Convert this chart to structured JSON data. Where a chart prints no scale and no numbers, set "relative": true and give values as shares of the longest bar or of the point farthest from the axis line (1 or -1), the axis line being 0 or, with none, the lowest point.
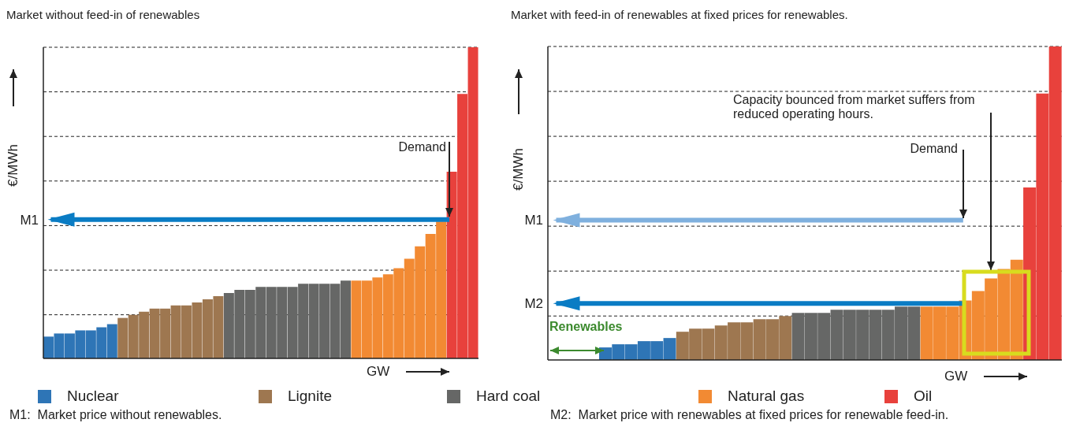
{
  "chart_data": [
    {
      "type": "bar",
      "title": "Market without feed-in of renewables",
      "xlabel": "GW",
      "ylabel": "€/MWh",
      "relative": true,
      "stacked": true,
      "grid": "y",
      "legend": "bottom",
      "categories": [
        null,
        null,
        null,
        null,
        null,
        null,
        null,
        null,
        null,
        null,
        null,
        null,
        null,
        null,
        null,
        null,
        null,
        null,
        null,
        null,
        null,
        null,
        null,
        null,
        null,
        null,
        null,
        null,
        null,
        null,
        null,
        null,
        null,
        null,
        null,
        null,
        null,
        null,
        null,
        null,
        null
      ],
      "ref_lines": [
        {
          "axis": "y",
          "value": 0.446,
          "label": "M1",
          "color": "#0a7cc4"
        }
      ],
      "annotations": [
        "Demand",
        "M1:  Market price without renewables."
      ],
      "series": [
        {
          "name": "Nuclear",
          "color": "#2e75b6",
          "values": [
            0.07,
            0.08,
            0.08,
            0.09,
            0.09,
            0.1,
            0.11,
            null,
            null,
            null,
            null,
            null,
            null,
            null,
            null,
            null,
            null,
            null,
            null,
            null,
            null,
            null,
            null,
            null,
            null,
            null,
            null,
            null,
            null,
            null,
            null,
            null,
            null,
            null,
            null,
            null,
            null,
            null,
            null,
            null,
            null
          ]
        },
        {
          "name": "Lignite",
          "color": "#9e7750",
          "values": [
            null,
            null,
            null,
            null,
            null,
            null,
            null,
            0.13,
            0.14,
            0.15,
            0.16,
            0.16,
            0.17,
            0.17,
            0.18,
            0.19,
            0.2,
            null,
            null,
            null,
            null,
            null,
            null,
            null,
            null,
            null,
            null,
            null,
            null,
            null,
            null,
            null,
            null,
            null,
            null,
            null,
            null,
            null,
            null,
            null,
            null
          ]
        },
        {
          "name": "Hard coal",
          "color": "#666766",
          "values": [
            null,
            null,
            null,
            null,
            null,
            null,
            null,
            null,
            null,
            null,
            null,
            null,
            null,
            null,
            null,
            null,
            null,
            0.21,
            0.22,
            0.22,
            0.23,
            0.23,
            0.23,
            0.23,
            0.24,
            0.24,
            0.24,
            0.24,
            0.25,
            null,
            null,
            null,
            null,
            null,
            null,
            null,
            null,
            null,
            null,
            null,
            null
          ]
        },
        {
          "name": "Natural gas",
          "color": "#f28a33",
          "values": [
            null,
            null,
            null,
            null,
            null,
            null,
            null,
            null,
            null,
            null,
            null,
            null,
            null,
            null,
            null,
            null,
            null,
            null,
            null,
            null,
            null,
            null,
            null,
            null,
            null,
            null,
            null,
            null,
            null,
            0.25,
            0.25,
            0.26,
            0.27,
            0.29,
            0.32,
            0.36,
            0.4,
            0.44,
            null,
            null,
            null
          ]
        },
        {
          "name": "Oil",
          "color": "#e8413c",
          "values": [
            null,
            null,
            null,
            null,
            null,
            null,
            null,
            null,
            null,
            null,
            null,
            null,
            null,
            null,
            null,
            null,
            null,
            null,
            null,
            null,
            null,
            null,
            null,
            null,
            null,
            null,
            null,
            null,
            null,
            null,
            null,
            null,
            null,
            null,
            null,
            null,
            null,
            null,
            0.6,
            0.85,
            1.0
          ]
        }
      ]
    },
    {
      "type": "bar",
      "title": "Market with feed-in of renewables at fixed prices for renewables.",
      "xlabel": "GW",
      "ylabel": "€/MWh",
      "relative": true,
      "stacked": true,
      "grid": "y",
      "categories": [
        null,
        null,
        null,
        null,
        null,
        null,
        null,
        null,
        null,
        null,
        null,
        null,
        null,
        null,
        null,
        null,
        null,
        null,
        null,
        null,
        null,
        null,
        null,
        null,
        null,
        null,
        null,
        null,
        null,
        null,
        null,
        null,
        null,
        null,
        null,
        null
      ],
      "ref_lines": [
        {
          "axis": "y",
          "value": 0.446,
          "label": "M1",
          "color": "#7fb0de"
        },
        {
          "axis": "y",
          "value": 0.18,
          "label": "M2",
          "color": "#0a7cc4"
        }
      ],
      "annotations": [
        "Capacity bounced from market suffers from reduced operating hours.",
        "Demand",
        "Renewables",
        "M2:  Market price with renewables at fixed prices for renewable feed-in."
      ],
      "series": [
        {
          "color": "#2e75b6",
          "values": [
            0.04,
            0.05,
            0.05,
            0.06,
            0.06,
            0.07,
            null,
            null,
            null,
            null,
            null,
            null,
            null,
            null,
            null,
            null,
            null,
            null,
            null,
            null,
            null,
            null,
            null,
            null,
            null,
            null,
            null,
            null,
            null,
            null,
            null,
            null,
            null,
            null,
            null,
            null
          ]
        },
        {
          "color": "#9e7750",
          "values": [
            null,
            null,
            null,
            null,
            null,
            null,
            0.09,
            0.1,
            0.1,
            0.11,
            0.12,
            0.12,
            0.13,
            0.13,
            0.14,
            null,
            null,
            null,
            null,
            null,
            null,
            null,
            null,
            null,
            null,
            null,
            null,
            null,
            null,
            null,
            null,
            null,
            null,
            null,
            null,
            null
          ]
        },
        {
          "color": "#666766",
          "values": [
            null,
            null,
            null,
            null,
            null,
            null,
            null,
            null,
            null,
            null,
            null,
            null,
            null,
            null,
            null,
            0.15,
            0.15,
            0.15,
            0.16,
            0.16,
            0.16,
            0.16,
            0.16,
            0.17,
            0.17,
            null,
            null,
            null,
            null,
            null,
            null,
            null,
            null,
            null,
            null,
            null
          ]
        },
        {
          "color": "#f28a33",
          "values": [
            null,
            null,
            null,
            null,
            null,
            null,
            null,
            null,
            null,
            null,
            null,
            null,
            null,
            null,
            null,
            null,
            null,
            null,
            null,
            null,
            null,
            null,
            null,
            null,
            null,
            0.17,
            0.17,
            0.17,
            0.19,
            0.22,
            0.26,
            0.29,
            0.32,
            null,
            null,
            null
          ]
        },
        {
          "color": "#e8413c",
          "values": [
            null,
            null,
            null,
            null,
            null,
            null,
            null,
            null,
            null,
            null,
            null,
            null,
            null,
            null,
            null,
            null,
            null,
            null,
            null,
            null,
            null,
            null,
            null,
            null,
            null,
            null,
            null,
            null,
            null,
            null,
            null,
            null,
            null,
            0.55,
            0.85,
            1.0
          ]
        }
      ]
    }
  ]
}
